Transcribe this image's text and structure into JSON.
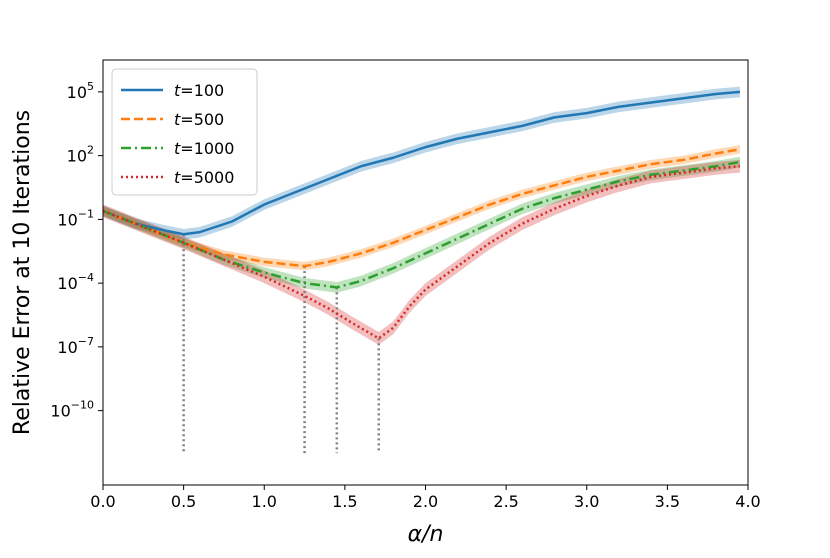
{
  "chart_data": {
    "type": "line",
    "xlabel": "α/n",
    "ylabel": "Relative Error at 10 Iterations",
    "xlim": [
      0,
      4
    ],
    "ylog": true,
    "ylim_log10": [
      -13.5,
      6.5
    ],
    "xticks": [
      0.0,
      0.5,
      1.0,
      1.5,
      2.0,
      2.5,
      3.0,
      3.5,
      4.0
    ],
    "xtick_labels": [
      "0.0",
      "0.5",
      "1.0",
      "1.5",
      "2.0",
      "2.5",
      "3.0",
      "3.5",
      "4.0"
    ],
    "yticks_log10": [
      -10,
      -7,
      -4,
      -1,
      2,
      5
    ],
    "ytick_labels": [
      {
        "base": "10",
        "exp": "−10"
      },
      {
        "base": "10",
        "exp": "−7"
      },
      {
        "base": "10",
        "exp": "−4"
      },
      {
        "base": "10",
        "exp": "−1"
      },
      {
        "base": "10",
        "exp": "2"
      },
      {
        "base": "10",
        "exp": "5"
      }
    ],
    "legend_position": "top-left",
    "grid": false,
    "series": [
      {
        "name_prefix": "t",
        "name_value": "=100",
        "color": "#1f77b4",
        "dash": "solid",
        "x": [
          0.0,
          0.2,
          0.4,
          0.5,
          0.6,
          0.8,
          1.0,
          1.2,
          1.4,
          1.6,
          1.8,
          2.0,
          2.2,
          2.4,
          2.6,
          2.8,
          3.0,
          3.2,
          3.4,
          3.6,
          3.8,
          3.95
        ],
        "log10_y": [
          -0.6,
          -1.2,
          -1.55,
          -1.7,
          -1.6,
          -1.1,
          -0.3,
          0.3,
          0.9,
          1.5,
          1.9,
          2.4,
          2.8,
          3.1,
          3.4,
          3.8,
          4.0,
          4.3,
          4.5,
          4.7,
          4.9,
          5.0
        ],
        "band": 0.25
      },
      {
        "name_prefix": "t",
        "name_value": "=500",
        "color": "#ff7f0e",
        "dash": "dashed",
        "x": [
          0.0,
          0.25,
          0.5,
          0.75,
          1.0,
          1.25,
          1.4,
          1.6,
          1.8,
          2.0,
          2.2,
          2.4,
          2.6,
          2.8,
          3.0,
          3.2,
          3.4,
          3.6,
          3.8,
          3.95
        ],
        "log10_y": [
          -0.6,
          -1.35,
          -2.1,
          -2.65,
          -3.0,
          -3.2,
          -3.0,
          -2.6,
          -2.1,
          -1.5,
          -0.9,
          -0.3,
          0.2,
          0.6,
          1.0,
          1.3,
          1.6,
          1.8,
          2.1,
          2.3
        ],
        "band": 0.2
      },
      {
        "name_prefix": "t",
        "name_value": "=1000",
        "color": "#2ca02c",
        "dash": "dashdot",
        "x": [
          0.0,
          0.25,
          0.5,
          0.75,
          1.0,
          1.25,
          1.45,
          1.6,
          1.8,
          2.0,
          2.2,
          2.4,
          2.6,
          2.8,
          3.0,
          3.2,
          3.4,
          3.6,
          3.8,
          3.95
        ],
        "log10_y": [
          -0.6,
          -1.35,
          -2.1,
          -2.9,
          -3.5,
          -4.0,
          -4.2,
          -3.9,
          -3.3,
          -2.6,
          -1.9,
          -1.2,
          -0.5,
          0.0,
          0.4,
          0.8,
          1.1,
          1.3,
          1.5,
          1.7
        ],
        "band": 0.25
      },
      {
        "name_prefix": "t",
        "name_value": "=5000",
        "color": "#d62728",
        "dash": "dotted",
        "x": [
          0.0,
          0.25,
          0.5,
          0.75,
          1.0,
          1.25,
          1.4,
          1.55,
          1.71,
          1.8,
          1.9,
          2.0,
          2.2,
          2.4,
          2.6,
          2.8,
          3.0,
          3.2,
          3.4,
          3.6,
          3.8,
          3.95
        ],
        "log10_y": [
          -0.6,
          -1.35,
          -2.1,
          -2.9,
          -3.7,
          -4.6,
          -5.2,
          -5.9,
          -6.6,
          -6.1,
          -5.1,
          -4.3,
          -3.2,
          -2.1,
          -1.2,
          -0.5,
          0.1,
          0.6,
          1.0,
          1.2,
          1.4,
          1.5
        ],
        "band": 0.3
      }
    ],
    "vlines": [
      {
        "x": 0.5,
        "log10_y": -1.7
      },
      {
        "x": 1.25,
        "log10_y": -3.2
      },
      {
        "x": 1.45,
        "log10_y": -4.2
      },
      {
        "x": 1.71,
        "log10_y": -6.6
      }
    ],
    "vline_bottom_log10": -12.0,
    "vline_color": "#7f7f7f"
  }
}
